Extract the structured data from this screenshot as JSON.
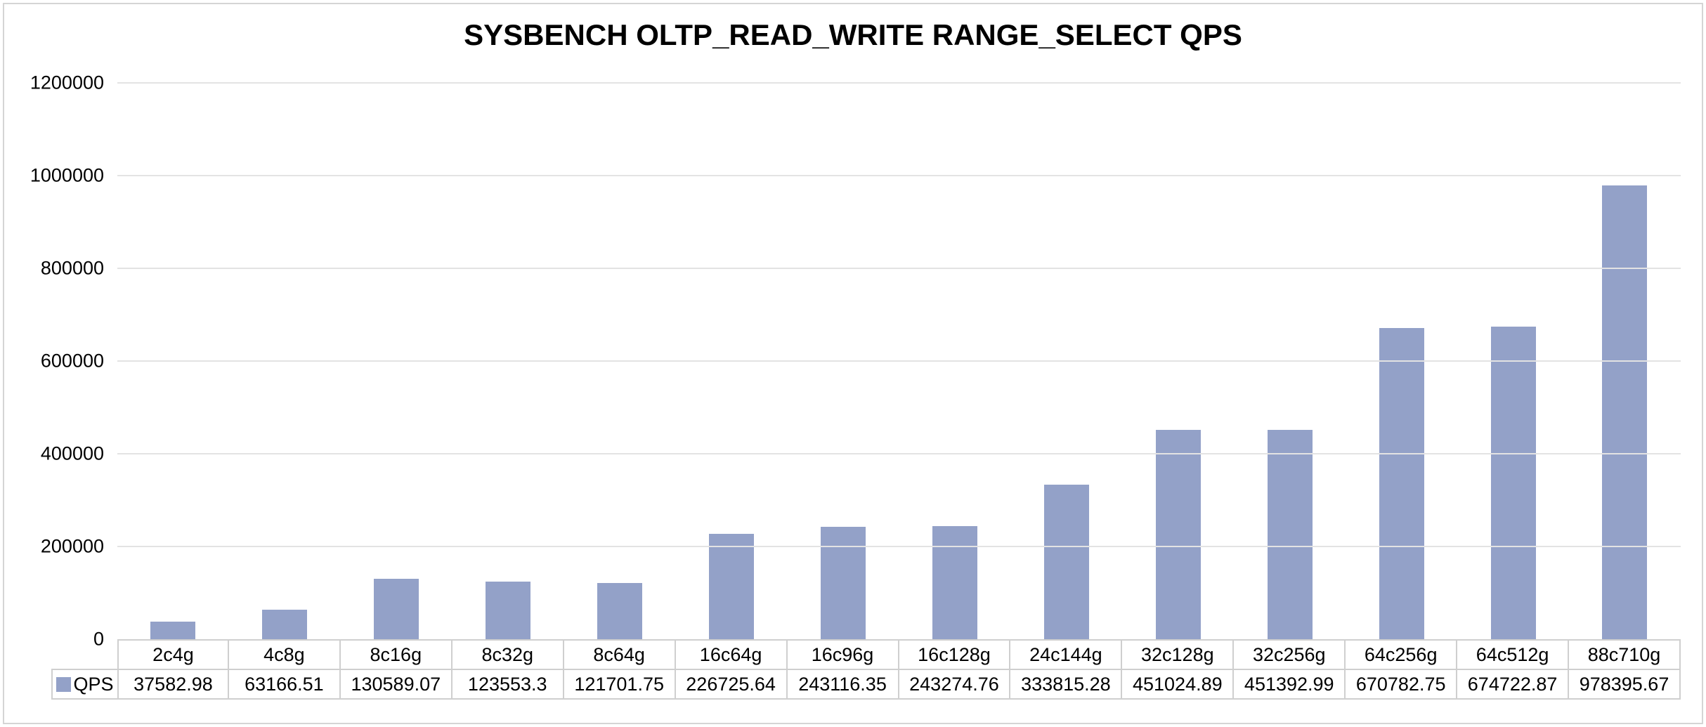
{
  "chart_data": {
    "type": "bar",
    "title": "SYSBENCH OLTP_READ_WRITE RANGE_SELECT QPS",
    "categories": [
      "2c4g",
      "4c8g",
      "8c16g",
      "8c32g",
      "8c64g",
      "16c64g",
      "16c96g",
      "16c128g",
      "24c144g",
      "32c128g",
      "32c256g",
      "64c256g",
      "64c512g",
      "88c710g"
    ],
    "series": [
      {
        "name": "QPS",
        "values": [
          37582.98,
          63166.51,
          130589.07,
          123553.3,
          121701.75,
          226725.64,
          243116.35,
          243274.76,
          333815.28,
          451024.89,
          451392.99,
          670782.75,
          674722.87,
          978395.67
        ]
      }
    ],
    "xlabel": "",
    "ylabel": "",
    "ylim": [
      0,
      1200000
    ],
    "y_ticks": [
      0,
      200000,
      400000,
      600000,
      800000,
      1000000,
      1200000
    ],
    "grid": true,
    "legend_position": "table-row-header",
    "colors": {
      "bar": "#93A1C8",
      "gridline": "#E3E3E3",
      "table_border": "#CFCFCF",
      "text": "#000000",
      "background": "#FFFFFF",
      "frame_border": "#D5D5D5"
    }
  }
}
